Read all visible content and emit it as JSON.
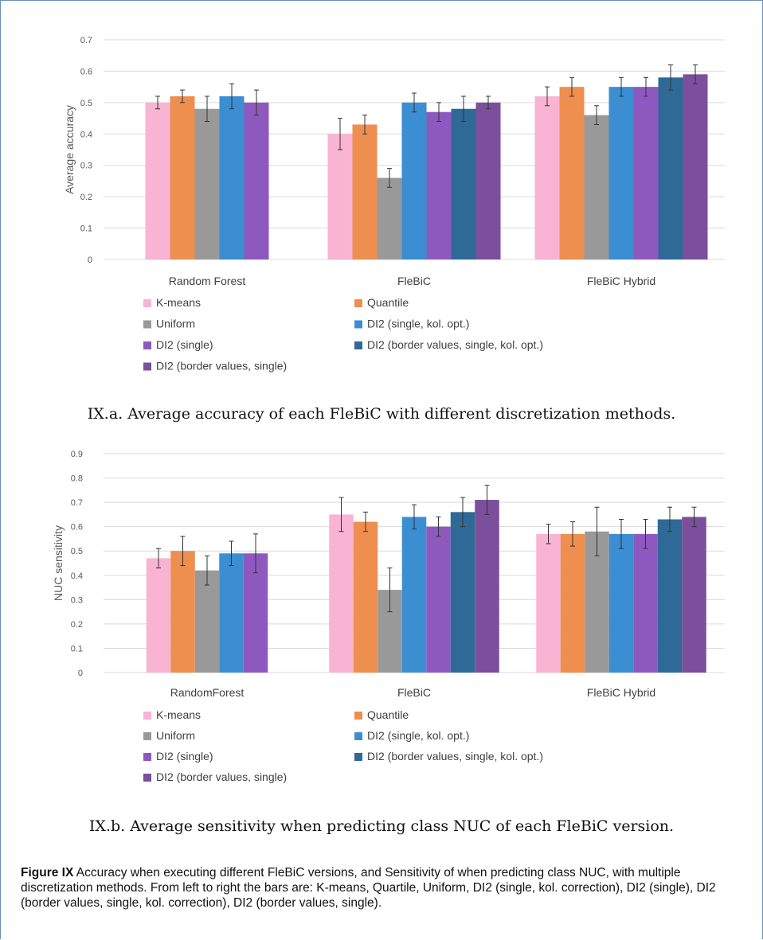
{
  "chart_data": [
    {
      "type": "bar",
      "title": "",
      "xlabel": "",
      "ylabel": "Average  accuracy",
      "ylim": [
        0,
        0.7
      ],
      "yticks": [
        "0",
        "0.1",
        "0.2",
        "0.3",
        "0.4",
        "0.5",
        "0.6",
        "0.7"
      ],
      "grid": true,
      "legend_position": "bottom",
      "categories": [
        "Random Forest",
        "FleBiC",
        "FleBiC Hybrid"
      ],
      "series": [
        {
          "name": "K-means",
          "color": "#f9b3d3",
          "values": [
            0.5,
            0.4,
            0.52
          ],
          "errors": [
            0.02,
            0.05,
            0.03
          ]
        },
        {
          "name": "Quantile",
          "color": "#ee8f4f",
          "values": [
            0.52,
            0.43,
            0.55
          ],
          "errors": [
            0.02,
            0.03,
            0.03
          ]
        },
        {
          "name": "Uniform",
          "color": "#999999",
          "values": [
            0.48,
            0.26,
            0.46
          ],
          "errors": [
            0.04,
            0.03,
            0.03
          ]
        },
        {
          "name": "DI2 (single, kol. opt.)",
          "color": "#3b8ed1",
          "values": [
            0.52,
            0.5,
            0.55
          ],
          "errors": [
            0.04,
            0.03,
            0.03
          ]
        },
        {
          "name": "DI2 (single)",
          "color": "#8e59bf",
          "values": [
            0.5,
            0.47,
            0.55
          ],
          "errors": [
            0.04,
            0.03,
            0.03
          ]
        },
        {
          "name": "DI2 (border values, single, kol. opt.)",
          "color": "#2f6a97",
          "values": [
            null,
            0.48,
            0.58
          ],
          "errors": [
            null,
            0.04,
            0.04
          ]
        },
        {
          "name": "DI2 (border values, single)",
          "color": "#7b4f9c",
          "values": [
            null,
            0.5,
            0.59
          ],
          "errors": [
            null,
            0.02,
            0.03
          ]
        }
      ]
    },
    {
      "type": "bar",
      "title": "",
      "xlabel": "",
      "ylabel": "NUC sensitivity",
      "ylim": [
        0,
        0.9
      ],
      "yticks": [
        "0",
        "0.1",
        "0.2",
        "0.3",
        "0.4",
        "0.5",
        "0.6",
        "0.7",
        "0.8",
        "0.9"
      ],
      "grid": true,
      "legend_position": "bottom",
      "categories": [
        "RandomForest",
        "FleBiC",
        "FleBiC Hybrid"
      ],
      "series": [
        {
          "name": "K-means",
          "color": "#f9b3d3",
          "values": [
            0.47,
            0.65,
            0.57
          ],
          "errors": [
            0.04,
            0.07,
            0.04
          ]
        },
        {
          "name": "Quantile",
          "color": "#ee8f4f",
          "values": [
            0.5,
            0.62,
            0.57
          ],
          "errors": [
            0.06,
            0.04,
            0.05
          ]
        },
        {
          "name": "Uniform",
          "color": "#999999",
          "values": [
            0.42,
            0.34,
            0.58
          ],
          "errors": [
            0.06,
            0.09,
            0.1
          ]
        },
        {
          "name": "DI2 (single, kol. opt.)",
          "color": "#3b8ed1",
          "values": [
            0.49,
            0.64,
            0.57
          ],
          "errors": [
            0.05,
            0.05,
            0.06
          ]
        },
        {
          "name": "DI2 (single)",
          "color": "#8e59bf",
          "values": [
            0.49,
            0.6,
            0.57
          ],
          "errors": [
            0.08,
            0.04,
            0.06
          ]
        },
        {
          "name": "DI2 (border values, single, kol. opt.)",
          "color": "#2f6a97",
          "values": [
            null,
            0.66,
            0.63
          ],
          "errors": [
            null,
            0.06,
            0.05
          ]
        },
        {
          "name": "DI2 (border values, single)",
          "color": "#7b4f9c",
          "values": [
            null,
            0.71,
            0.64
          ],
          "errors": [
            null,
            0.06,
            0.04
          ]
        }
      ]
    }
  ],
  "captions": {
    "sub_a": "IX.a. Average accuracy of each FleBiC with different discretization methods.",
    "sub_b": "IX.b. Average sensitivity when predicting class NUC of each FleBiC version.",
    "figure_label": "Figure IX",
    "figure_text": " Accuracy when executing different FleBiC versions, and Sensitivity of when predicting class NUC, with multiple discretization methods. From left to right the bars are: K-means, Quartile, Uniform, DI2 (single, kol. correction), DI2 (single), DI2 (border values, single, kol. correction), DI2 (border values, single)."
  }
}
